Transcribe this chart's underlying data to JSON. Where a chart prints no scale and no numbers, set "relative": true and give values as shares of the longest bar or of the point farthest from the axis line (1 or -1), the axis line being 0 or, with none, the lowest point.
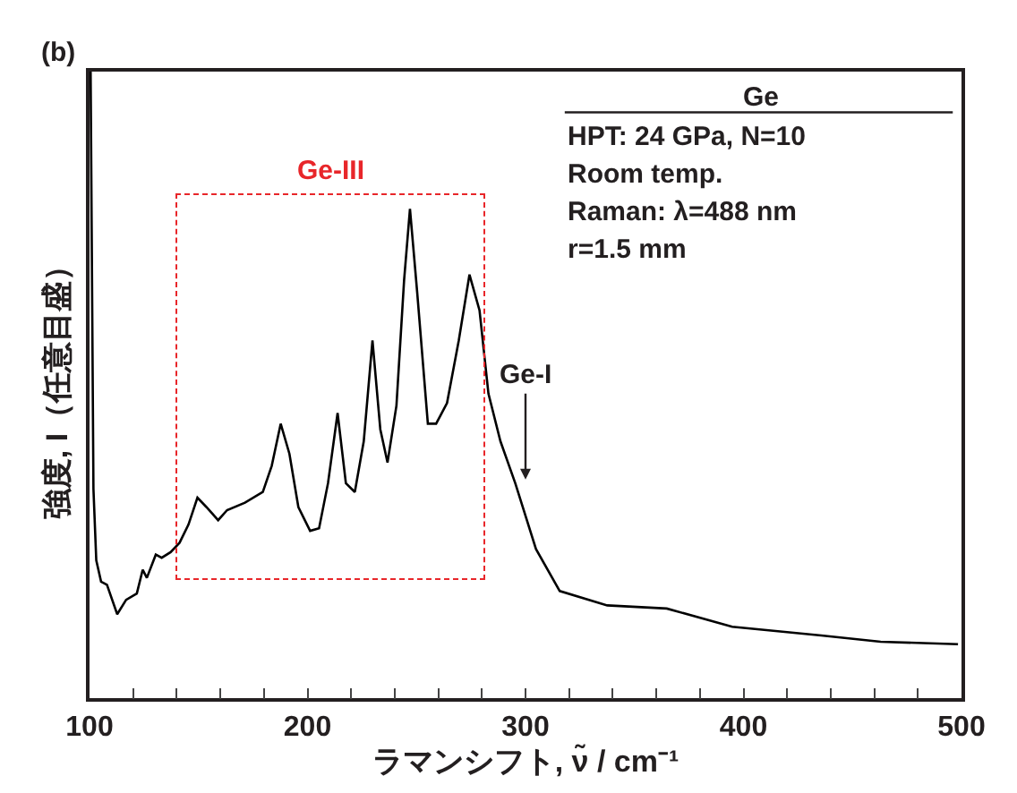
{
  "chart_data": {
    "type": "line",
    "relative": true,
    "xlabel": "ラマンシフト, ν̃ / cm⁻¹",
    "ylabel": "強度, I（任意目盛）",
    "x": [
      100.5,
      101.8,
      103.1,
      105.3,
      108,
      112.7,
      116.8,
      121.7,
      124.4,
      126.3,
      130.4,
      133.1,
      137.2,
      141.3,
      145.4,
      149.5,
      153.6,
      159,
      163.1,
      171.3,
      179.5,
      183.6,
      187.7,
      191.7,
      195.8,
      201.2,
      205.3,
      209.4,
      213.8,
      217.6,
      221.7,
      225.8,
      229.8,
      233.4,
      236.7,
      240.8,
      244.3,
      247,
      250.3,
      255.2,
      259,
      264,
      269.4,
      274.3,
      278.9,
      283,
      288.5,
      295.3,
      304.8,
      315.7,
      337.5,
      364.8,
      394.8,
      435.7,
      462.9,
      498.4
    ],
    "values": [
      1.0,
      0.334,
      0.22,
      0.186,
      0.181,
      0.134,
      0.157,
      0.167,
      0.205,
      0.192,
      0.229,
      0.224,
      0.233,
      0.248,
      0.277,
      0.32,
      0.305,
      0.284,
      0.3,
      0.312,
      0.329,
      0.371,
      0.438,
      0.39,
      0.305,
      0.267,
      0.271,
      0.343,
      0.455,
      0.343,
      0.329,
      0.41,
      0.571,
      0.429,
      0.376,
      0.467,
      0.667,
      0.781,
      0.648,
      0.438,
      0.438,
      0.471,
      0.571,
      0.676,
      0.619,
      0.486,
      0.41,
      0.343,
      0.238,
      0.171,
      0.148,
      0.143,
      0.114,
      0.1,
      0.09,
      0.086
    ],
    "color": "#000000",
    "xlim": [
      100,
      500
    ],
    "xticks": [
      100,
      {
        "value": 120,
        "label": null
      },
      {
        "value": 140,
        "label": null
      },
      {
        "value": 160,
        "label": null
      },
      {
        "value": 180,
        "label": null
      },
      200,
      {
        "value": 220,
        "label": null
      },
      {
        "value": 240,
        "label": null
      },
      {
        "value": 260,
        "label": null
      },
      {
        "value": 280,
        "label": null
      },
      300,
      {
        "value": 320,
        "label": null
      },
      {
        "value": 340,
        "label": null
      },
      {
        "value": 360,
        "label": null
      },
      {
        "value": 380,
        "label": null
      },
      400,
      {
        "value": 420,
        "label": null
      },
      {
        "value": 440,
        "label": null
      },
      {
        "value": 460,
        "label": null
      },
      {
        "value": 480,
        "label": null
      },
      500
    ],
    "annotations": [
      "(b)",
      "Ge",
      "HPT: 24 GPa, N=10",
      "Room temp.",
      "Raman: λ=488 nm",
      "r=1.5 mm",
      "Ge-III",
      "Ge-I"
    ],
    "marker": "none",
    "line_style": "solid"
  }
}
